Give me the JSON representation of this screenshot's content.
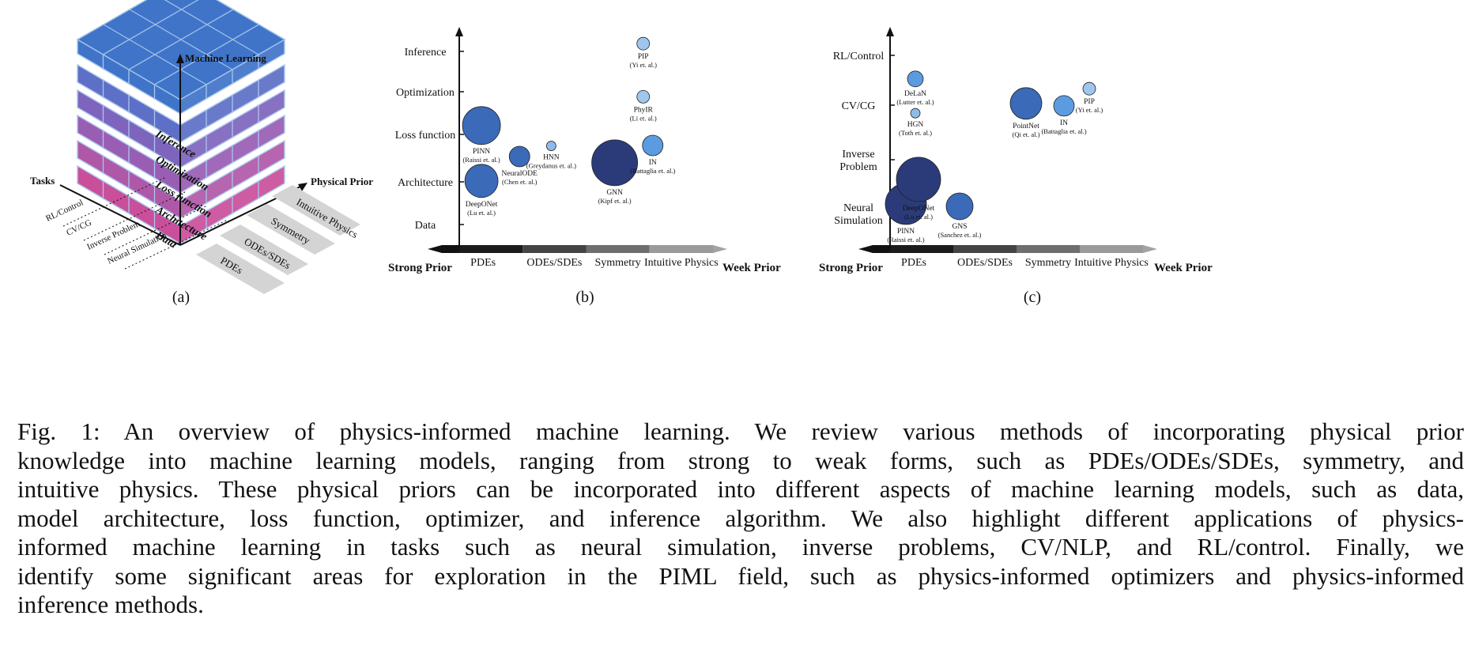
{
  "panel_a": {
    "label": "(a)",
    "axes": {
      "vertical": "Machine Learning",
      "left": "Tasks",
      "right": "Physical Prior"
    },
    "layers": [
      "Data",
      "Architecture",
      "Loss function",
      "Optimization",
      "Inference"
    ],
    "layer_colors": [
      "#c94f9b",
      "#b058a8",
      "#9a5db4",
      "#7e64bd",
      "#5d6fc6",
      "#3f74c8"
    ],
    "tasks": [
      "RL/Control",
      "CV/CG",
      "Inverse Problem",
      "Neural Simulation"
    ],
    "priors": [
      "PDEs",
      "ODEs/SDEs",
      "Symmetry",
      "Intuitive Physics"
    ]
  },
  "chart_data": [
    {
      "type": "scatter",
      "panel": "(b)",
      "categories_x": [
        "PDEs",
        "ODEs/SDEs",
        "Symmetry",
        "Intuitive Physics"
      ],
      "categories_y": [
        "Data",
        "Architecture",
        "Loss function",
        "Optimization",
        "Inference"
      ],
      "x_left_label": "Strong Prior",
      "x_right_label": "Week Prior",
      "points": [
        {
          "name": "PINN",
          "cite": "(Raissi et. al.)",
          "x": 0.35,
          "y": 2.7,
          "r": 24,
          "color": "#3a6ab8"
        },
        {
          "name": "DeepONet",
          "cite": "(Lu et. al.)",
          "x": 0.35,
          "y": 1.45,
          "r": 21,
          "color": "#3a6ab8"
        },
        {
          "name": "NeuralODE",
          "cite": "(Chen et. al.)",
          "x": 0.95,
          "y": 2.0,
          "r": 13,
          "color": "#3a6ab8"
        },
        {
          "name": "HNN",
          "cite": "(Greydanus et. al.)",
          "x": 1.45,
          "y": 2.24,
          "r": 6,
          "color": "#8fbbe8"
        },
        {
          "name": "GNN",
          "cite": "(Kipf et. al.)",
          "x": 2.45,
          "y": 1.86,
          "r": 29,
          "color": "#2b3b7a"
        },
        {
          "name": "IN",
          "cite": "(Battaglia et. al.)",
          "x": 3.05,
          "y": 2.25,
          "r": 13,
          "color": "#5b9be0"
        },
        {
          "name": "PhyIR",
          "cite": "(Li et. al.)",
          "x": 2.9,
          "y": 3.35,
          "r": 8,
          "color": "#9fc6ec"
        },
        {
          "name": "PIP",
          "cite": "(Yi et. al.)",
          "x": 2.9,
          "y": 4.55,
          "r": 8,
          "color": "#9fc6ec"
        }
      ]
    },
    {
      "type": "scatter",
      "panel": "(c)",
      "categories_x": [
        "PDEs",
        "ODEs/SDEs",
        "Symmetry",
        "Intuitive Physics"
      ],
      "categories_y": [
        "Neural Simulation",
        "Inverse Problem",
        "CV/CG",
        "RL/Control"
      ],
      "x_left_label": "Strong Prior",
      "x_right_label": "Week Prior",
      "points": [
        {
          "name": "PINN",
          "cite": "(Raissi et. al.)",
          "x": 0.25,
          "y": 1.05,
          "r": 26,
          "color": "#2b3b7a"
        },
        {
          "name": "DeepONet",
          "cite": "(Lu et. al.)",
          "x": 0.45,
          "y": 1.55,
          "r": 28,
          "color": "#2b3b7a"
        },
        {
          "name": "GNS",
          "cite": "(Sanchez et. al.)",
          "x": 1.1,
          "y": 1.0,
          "r": 17,
          "color": "#3a6ab8"
        },
        {
          "name": "DeLaN",
          "cite": "(Lutter et. al.)",
          "x": 0.4,
          "y": 3.6,
          "r": 10,
          "color": "#5b9be0"
        },
        {
          "name": "HGN",
          "cite": "(Toth et. al.)",
          "x": 0.4,
          "y": 2.9,
          "r": 6,
          "color": "#8fbbe8"
        },
        {
          "name": "PointNet",
          "cite": "(Qi et. al.)",
          "x": 2.15,
          "y": 3.1,
          "r": 20,
          "color": "#3a6ab8"
        },
        {
          "name": "IN",
          "cite": "(Battaglia et. al.)",
          "x": 2.75,
          "y": 3.05,
          "r": 13,
          "color": "#5b9be0"
        },
        {
          "name": "PIP",
          "cite": "(Yi et. al.)",
          "x": 3.15,
          "y": 3.4,
          "r": 8,
          "color": "#9fc6ec"
        }
      ]
    }
  ],
  "caption": {
    "lines": [
      "Fig. 1: An overview of physics-informed machine learning. We review various methods of incorporating physical prior",
      "knowledge into machine learning models, ranging from strong to weak forms, such as PDEs/ODEs/SDEs, symmetry, and",
      "intuitive physics. These physical priors can be incorporated into different aspects of machine learning models, such as data,",
      "model architecture, loss function, optimizer, and inference algorithm. We also highlight different applications of physics-",
      "informed machine learning in tasks such as neural simulation, inverse problems, CV/NLP, and RL/control. Finally, we",
      "identify some significant areas for exploration in the PIML field, such as physics-informed optimizers and physics-informed",
      "inference methods."
    ]
  }
}
